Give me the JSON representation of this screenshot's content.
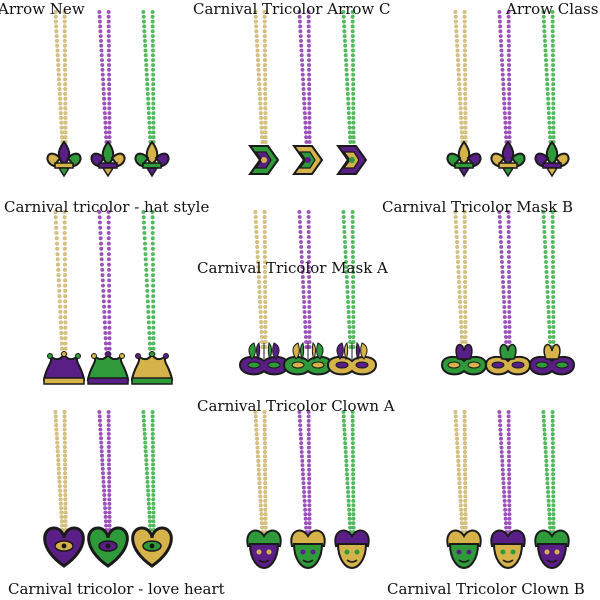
{
  "labels": {
    "arrow_new": "Arrow New",
    "carnival_tricolor_arrow_c": "Carnival Tricolor Arrow C",
    "arrow_class": "Arrow Class",
    "carnival_tricolor_hat_style": "Carnival tricolor  - hat style",
    "carnival_tricolor_mask_b": "Carnival Tricolor Mask B",
    "carnival_tricolor_mask_a": "Carnival Tricolor Mask A",
    "carnival_tricolor_clown_a": "Carnival Tricolor Clown A",
    "carnival_tricolor_love_heart": "Carnival tricolor - love heart",
    "carnival_tricolor_clown_b": "Carnival Tricolor Clown B"
  },
  "colors": {
    "gold": "#d9c27a",
    "purple": "#a04fc0",
    "green": "#4dbf5a",
    "outline": "#1a1a1a",
    "sequin_gold": "#d6b24a",
    "sequin_purple": "#5a1f86",
    "sequin_green": "#2f9a3a"
  },
  "products": [
    {
      "name": "fleur-de-lis-necklaces",
      "pendant": "fleur"
    },
    {
      "name": "arrow-c-necklaces",
      "pendant": "arrowc"
    },
    {
      "name": "arrow-class-necklaces",
      "pendant": "fleur2"
    },
    {
      "name": "jester-hat-necklaces",
      "pendant": "hat"
    },
    {
      "name": "mask-a-necklaces",
      "pendant": "maskfeather"
    },
    {
      "name": "mask-b-necklaces",
      "pendant": "maskplume"
    },
    {
      "name": "heart-necklaces",
      "pendant": "heart"
    },
    {
      "name": "clown-a-necklaces",
      "pendant": "clown"
    },
    {
      "name": "clown-b-necklaces",
      "pendant": "clown2"
    }
  ]
}
